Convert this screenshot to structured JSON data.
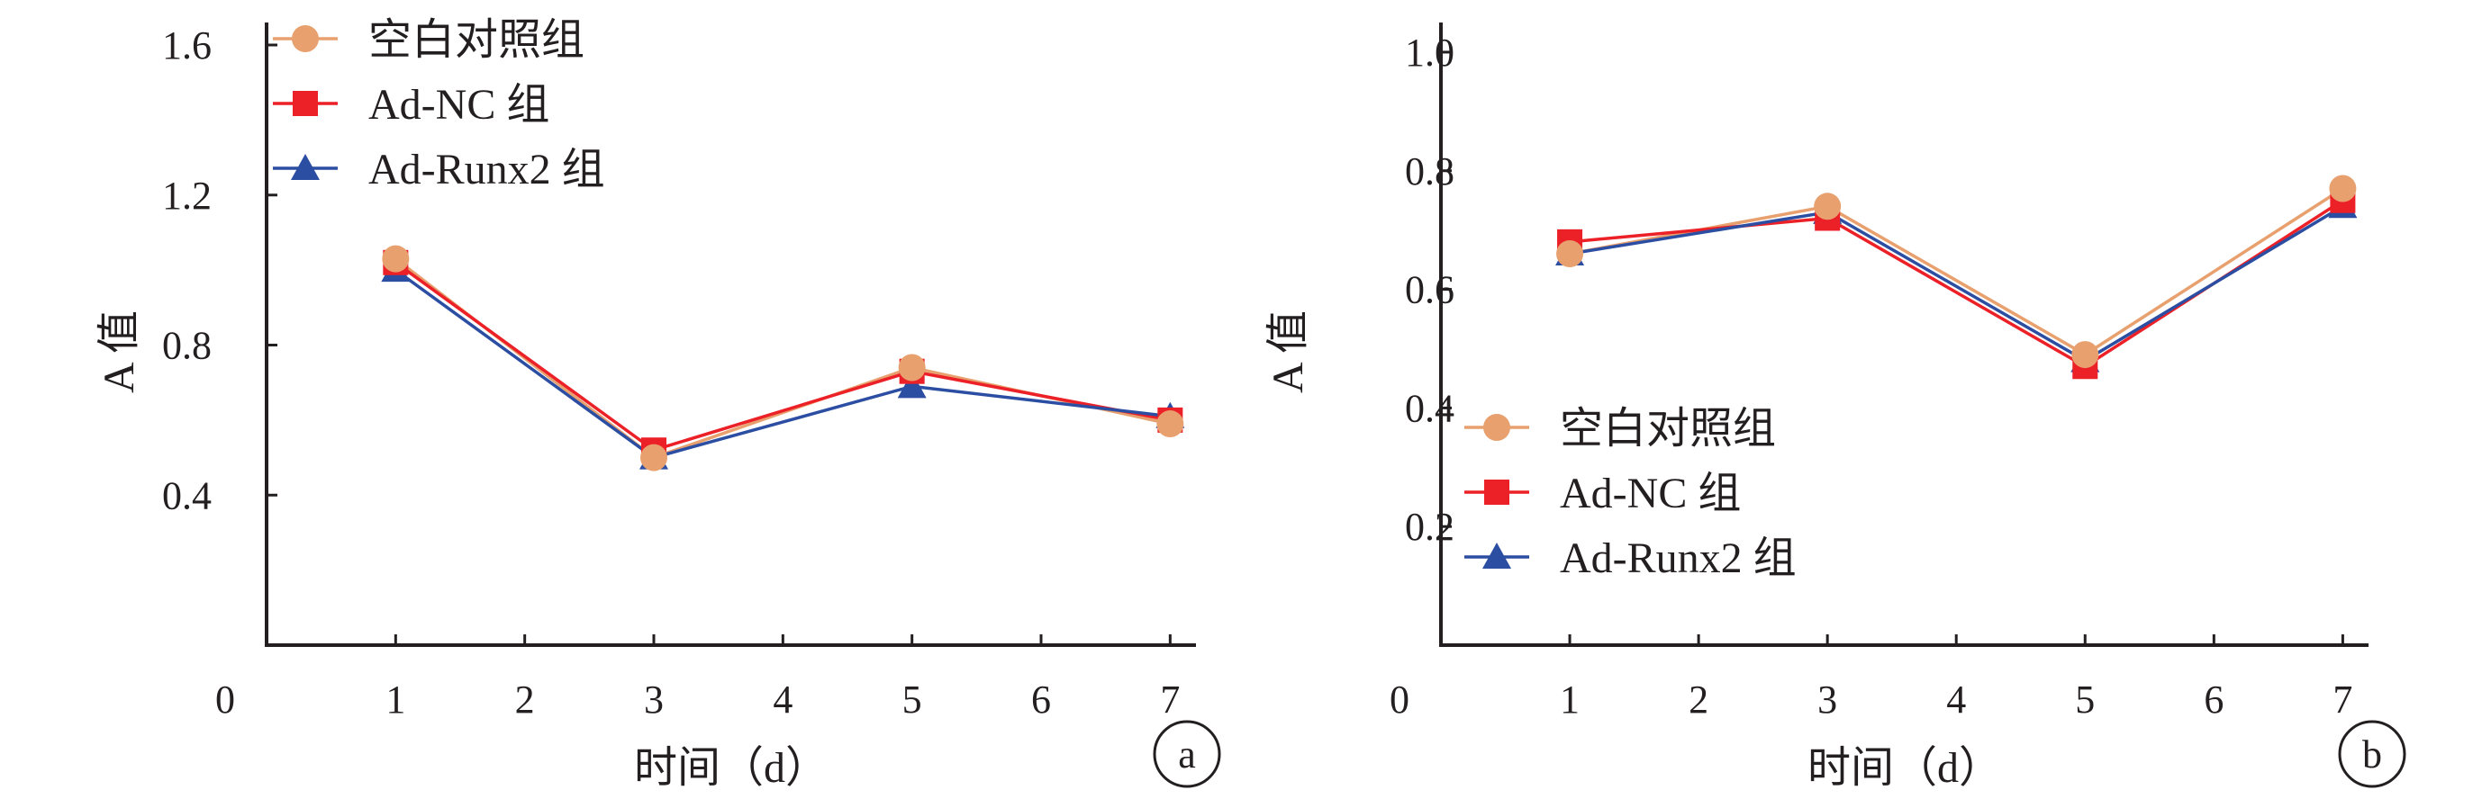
{
  "colors": {
    "blank": "#e8a06e",
    "nc": "#ec2027",
    "runx2": "#2b4ea2",
    "axis": "#231f20"
  },
  "chart_data": [
    {
      "type": "line",
      "panel": "a",
      "xlabel": "时间（d）",
      "ylabel": "A 值",
      "x_origin_label": "0",
      "xlim": [
        0,
        7
      ],
      "ylim": [
        0,
        1.66
      ],
      "xticks": [
        1,
        2,
        3,
        4,
        5,
        6,
        7
      ],
      "yticks": [
        0.4,
        0.8,
        1.2,
        1.6
      ],
      "ytick_labels": [
        "0.4",
        "0.8",
        "1.2",
        "1.6"
      ],
      "legend_position": "top-left",
      "x": [
        1,
        3,
        5,
        7
      ],
      "series": [
        {
          "name": "空白对照组",
          "marker": "circle",
          "color": "#e8a06e",
          "values": [
            1.03,
            0.5,
            0.74,
            0.59
          ]
        },
        {
          "name": "Ad-NC 组",
          "marker": "square",
          "color": "#ec2027",
          "values": [
            1.02,
            0.52,
            0.73,
            0.6
          ]
        },
        {
          "name": "Ad-Runx2 组",
          "marker": "triangle",
          "color": "#2b4ea2",
          "values": [
            1.0,
            0.5,
            0.69,
            0.61
          ]
        }
      ]
    },
    {
      "type": "line",
      "panel": "b",
      "xlabel": "时间（d）",
      "ylabel": "A 值",
      "x_origin_label": "0",
      "xlim": [
        0,
        7
      ],
      "ylim": [
        0,
        1.05
      ],
      "xticks": [
        1,
        2,
        3,
        4,
        5,
        6,
        7
      ],
      "yticks": [
        0.2,
        0.4,
        0.6,
        0.8,
        1.0
      ],
      "ytick_labels": [
        "0.2",
        "0.4",
        "0.6",
        "0.8",
        "1.0"
      ],
      "legend_position": "bottom-left",
      "x": [
        1,
        3,
        5,
        7
      ],
      "series": [
        {
          "name": "空白对照组",
          "marker": "circle",
          "color": "#e8a06e",
          "values": [
            0.66,
            0.74,
            0.49,
            0.77
          ]
        },
        {
          "name": "Ad-NC 组",
          "marker": "square",
          "color": "#ec2027",
          "values": [
            0.68,
            0.72,
            0.47,
            0.75
          ]
        },
        {
          "name": "Ad-Runx2 组",
          "marker": "triangle",
          "color": "#2b4ea2",
          "values": [
            0.66,
            0.73,
            0.48,
            0.74
          ]
        }
      ]
    }
  ]
}
